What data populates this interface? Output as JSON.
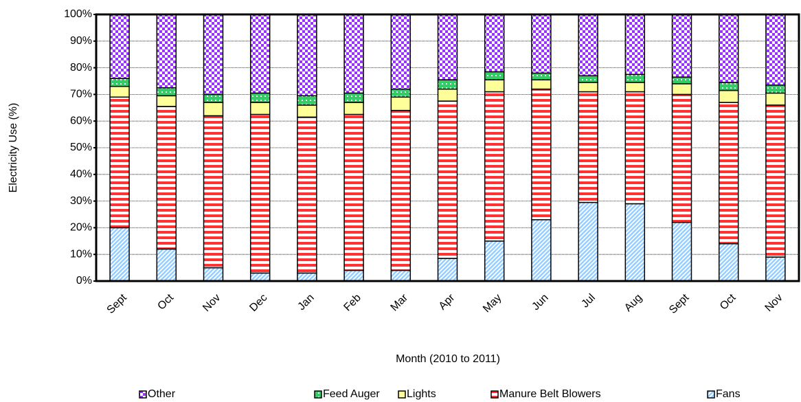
{
  "chart_data": {
    "type": "stacked-bar",
    "y_label": "Electricity Use (%)",
    "x_label": "Month (2010 to 2011)",
    "categories": [
      "Sept",
      "Oct",
      "Nov",
      "Dec",
      "Jan",
      "Feb",
      "Mar",
      "Apr",
      "May",
      "Jun",
      "Jul",
      "Aug",
      "Sept",
      "Oct",
      "Nov"
    ],
    "series": [
      {
        "name": "Fans",
        "color": "#99ccff",
        "pattern": "diagonal",
        "values": [
          20,
          12,
          5,
          3,
          3,
          4,
          4,
          8.5,
          15,
          23,
          29.5,
          29,
          22,
          14,
          9
        ]
      },
      {
        "name": "Manure Belt Blowers",
        "color": "#ff3333",
        "pattern": "horizontal",
        "values": [
          49,
          53.5,
          57,
          59.5,
          58.5,
          58.5,
          60,
          59,
          56,
          49,
          41.5,
          42,
          48,
          53,
          57
        ]
      },
      {
        "name": "Lights",
        "color": "#ffff99",
        "pattern": "solid",
        "values": [
          4,
          4,
          5,
          4.5,
          4.5,
          4.5,
          5,
          4.5,
          4.5,
          3.5,
          3.5,
          3.5,
          4,
          4.5,
          4.5
        ]
      },
      {
        "name": "Feed Auger",
        "color": "#33cc66",
        "pattern": "dots",
        "values": [
          3,
          3,
          3,
          3.5,
          3.5,
          3.5,
          3,
          3.5,
          3,
          2.5,
          2.5,
          3,
          2.5,
          3,
          3
        ]
      },
      {
        "name": "Other",
        "color": "#9933ff",
        "pattern": "checker",
        "values": [
          24,
          27.5,
          30,
          29.5,
          30.5,
          29.5,
          28,
          24.5,
          21.5,
          22,
          23,
          22.5,
          23.5,
          25.5,
          26.5
        ]
      }
    ],
    "ylim": [
      0,
      100
    ],
    "yticks": [
      {
        "value": 0,
        "label": "0%"
      },
      {
        "value": 10,
        "label": "10%"
      },
      {
        "value": 20,
        "label": "20%"
      },
      {
        "value": 30,
        "label": "30%"
      },
      {
        "value": 40,
        "label": "40%"
      },
      {
        "value": 50,
        "label": "50%"
      },
      {
        "value": 60,
        "label": "60%"
      },
      {
        "value": 70,
        "label": "70%"
      },
      {
        "value": 80,
        "label": "80%"
      },
      {
        "value": 90,
        "label": "90%"
      },
      {
        "value": 100,
        "label": "100%"
      }
    ],
    "grid": true,
    "legend": "bottom"
  }
}
